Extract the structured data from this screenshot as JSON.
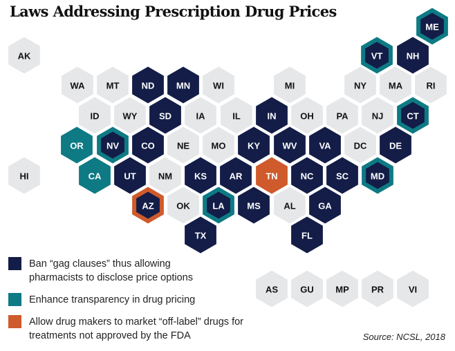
{
  "title": "Laws Addressing Prescription Drug Prices",
  "colors": {
    "gag": "#131d47",
    "transparency": "#0d7a84",
    "offlabel": "#cf5a2b",
    "none": "#e6e7e9"
  },
  "legend": [
    {
      "key": "gag",
      "line1": "Ban “gag clauses” thus allowing",
      "line2": "pharmacists to disclose price options"
    },
    {
      "key": "transparency",
      "line1": "Enhance transparency in drug pricing",
      "line2": ""
    },
    {
      "key": "offlabel",
      "line1": "Allow drug makers to market “off-label” drugs for",
      "line2": "treatments not approved by the FDA"
    }
  ],
  "source": "Source: NCSL, 2018",
  "states": [
    {
      "abbr": "ME",
      "fill": "gag",
      "outline": "transparency"
    },
    {
      "abbr": "AK",
      "fill": "none"
    },
    {
      "abbr": "VT",
      "fill": "gag",
      "outline": "transparency"
    },
    {
      "abbr": "NH",
      "fill": "gag"
    },
    {
      "abbr": "WA",
      "fill": "none"
    },
    {
      "abbr": "MT",
      "fill": "none"
    },
    {
      "abbr": "ND",
      "fill": "gag"
    },
    {
      "abbr": "MN",
      "fill": "gag"
    },
    {
      "abbr": "WI",
      "fill": "none"
    },
    {
      "abbr": "MI",
      "fill": "none"
    },
    {
      "abbr": "NY",
      "fill": "none"
    },
    {
      "abbr": "MA",
      "fill": "none"
    },
    {
      "abbr": "RI",
      "fill": "none"
    },
    {
      "abbr": "ID",
      "fill": "none"
    },
    {
      "abbr": "WY",
      "fill": "none"
    },
    {
      "abbr": "SD",
      "fill": "gag"
    },
    {
      "abbr": "IA",
      "fill": "none"
    },
    {
      "abbr": "IL",
      "fill": "none"
    },
    {
      "abbr": "IN",
      "fill": "gag"
    },
    {
      "abbr": "OH",
      "fill": "none"
    },
    {
      "abbr": "PA",
      "fill": "none"
    },
    {
      "abbr": "NJ",
      "fill": "none"
    },
    {
      "abbr": "CT",
      "fill": "gag",
      "outline": "transparency"
    },
    {
      "abbr": "OR",
      "fill": "transparency"
    },
    {
      "abbr": "NV",
      "fill": "gag",
      "outline": "transparency"
    },
    {
      "abbr": "CO",
      "fill": "gag"
    },
    {
      "abbr": "NE",
      "fill": "none"
    },
    {
      "abbr": "MO",
      "fill": "none"
    },
    {
      "abbr": "KY",
      "fill": "gag"
    },
    {
      "abbr": "WV",
      "fill": "gag"
    },
    {
      "abbr": "VA",
      "fill": "gag"
    },
    {
      "abbr": "DC",
      "fill": "none"
    },
    {
      "abbr": "DE",
      "fill": "gag"
    },
    {
      "abbr": "HI",
      "fill": "none"
    },
    {
      "abbr": "CA",
      "fill": "transparency"
    },
    {
      "abbr": "UT",
      "fill": "gag"
    },
    {
      "abbr": "NM",
      "fill": "none"
    },
    {
      "abbr": "KS",
      "fill": "gag"
    },
    {
      "abbr": "AR",
      "fill": "gag"
    },
    {
      "abbr": "TN",
      "fill": "offlabel"
    },
    {
      "abbr": "NC",
      "fill": "gag"
    },
    {
      "abbr": "SC",
      "fill": "gag"
    },
    {
      "abbr": "MD",
      "fill": "gag",
      "outline": "transparency"
    },
    {
      "abbr": "AZ",
      "fill": "gag",
      "outline": "offlabel"
    },
    {
      "abbr": "OK",
      "fill": "none"
    },
    {
      "abbr": "LA",
      "fill": "gag",
      "outline": "transparency"
    },
    {
      "abbr": "MS",
      "fill": "gag"
    },
    {
      "abbr": "AL",
      "fill": "none"
    },
    {
      "abbr": "GA",
      "fill": "gag"
    },
    {
      "abbr": "TX",
      "fill": "gag"
    },
    {
      "abbr": "FL",
      "fill": "gag"
    },
    {
      "abbr": "AS",
      "fill": "none"
    },
    {
      "abbr": "GU",
      "fill": "none"
    },
    {
      "abbr": "MP",
      "fill": "none"
    },
    {
      "abbr": "PR",
      "fill": "none"
    },
    {
      "abbr": "VI",
      "fill": "none"
    }
  ]
}
